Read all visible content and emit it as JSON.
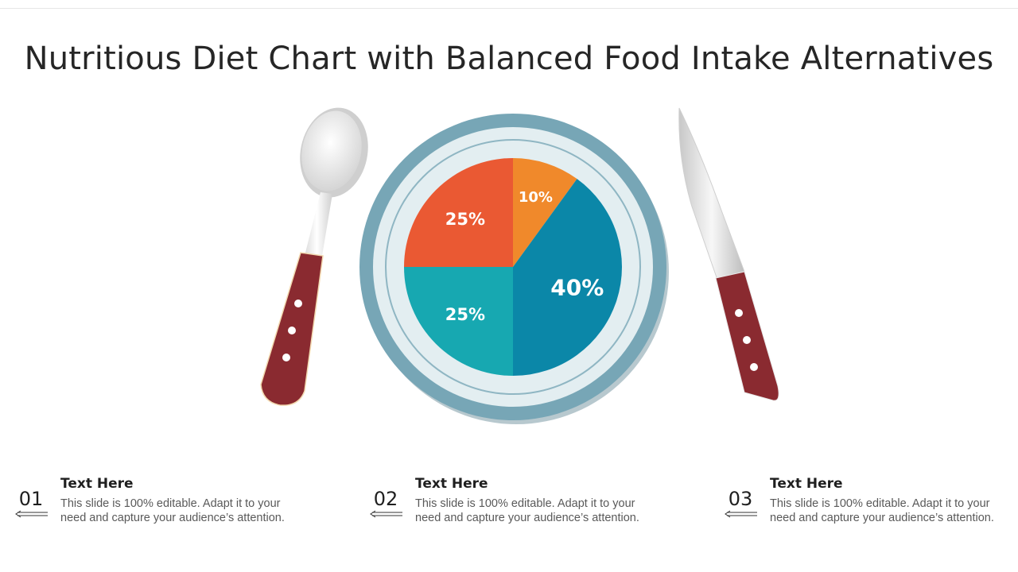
{
  "title": "Nutritious Diet Chart with Balanced Food Intake Alternatives",
  "chart_data": {
    "type": "pie",
    "title": "",
    "values": [
      10,
      40,
      25,
      25
    ],
    "labels": [
      "10%",
      "40%",
      "25%",
      "25%"
    ],
    "colors": [
      "#f0892b",
      "#0b87a8",
      "#17a8b1",
      "#ea5933"
    ]
  },
  "plate_colors": {
    "outer_rim": "#77a6b6",
    "inner": "#e3eef1",
    "ring": "#8fb6c3"
  },
  "utensils": {
    "spoon_icon": "spoon-icon",
    "knife_icon": "knife-icon",
    "handle_color": "#8a2a30"
  },
  "items": [
    {
      "number": "01",
      "heading": "Text Here",
      "text": "This slide is 100% editable. Adapt it to your need and capture your audience’s attention.",
      "icon": "left-arrow-icon"
    },
    {
      "number": "02",
      "heading": "Text Here",
      "text": "This slide is 100% editable. Adapt it to your need and capture your audience’s attention.",
      "icon": "left-arrow-icon"
    },
    {
      "number": "03",
      "heading": "Text Here",
      "text": "This slide is 100% editable. Adapt it to your need and capture your audience’s attention.",
      "icon": "left-arrow-icon"
    }
  ]
}
